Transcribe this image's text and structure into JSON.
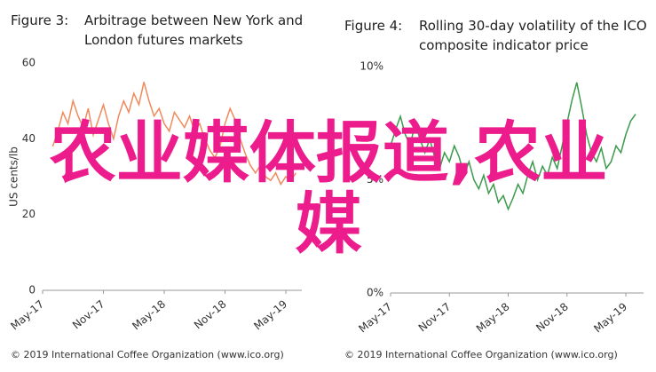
{
  "chart_data": [
    {
      "type": "line",
      "figure_label": "Figure 3:",
      "title": "Arbitrage between New York and London futures markets",
      "ylabel": "US cents/lb",
      "ylim": [
        0,
        60
      ],
      "yticks": [
        0,
        20,
        40,
        60
      ],
      "categories": [
        "May-17",
        null,
        null,
        null,
        null,
        null,
        null,
        null,
        null,
        null,
        null,
        null,
        "Nov-17",
        null,
        null,
        null,
        null,
        null,
        null,
        null,
        null,
        null,
        null,
        null,
        "May-18",
        null,
        null,
        null,
        null,
        null,
        null,
        null,
        null,
        null,
        null,
        null,
        "Nov-18",
        null,
        null,
        null,
        null,
        null,
        null,
        null,
        null,
        null,
        null,
        null,
        "May-19",
        null,
        null
      ],
      "series": [
        {
          "color": "#f08a5d",
          "values": [
            null,
            null,
            38,
            42,
            47,
            44,
            50,
            46,
            43,
            48,
            41,
            45,
            49,
            44,
            40,
            46,
            50,
            47,
            52,
            49,
            55,
            50,
            46,
            48,
            44,
            42,
            47,
            45,
            43,
            46,
            42,
            44,
            40,
            37,
            35,
            38,
            44,
            48,
            45,
            40,
            36,
            33,
            31,
            33,
            30,
            29,
            31,
            28,
            30,
            29,
            31
          ]
        }
      ],
      "source": "© 2019 International Coffee Organization (www.ico.org)"
    },
    {
      "type": "line",
      "figure_label": "Figure 4:",
      "title": "Rolling 30-day volatility of the ICO composite indicator price",
      "ylim": [
        0,
        10
      ],
      "yticks": [
        {
          "value": 0,
          "label": "0%"
        },
        {
          "value": 5,
          "label": "5%"
        },
        {
          "value": 10,
          "label": "10%"
        }
      ],
      "categories": [
        "May-17",
        null,
        null,
        null,
        null,
        null,
        null,
        null,
        null,
        null,
        null,
        null,
        "Nov-17",
        null,
        null,
        null,
        null,
        null,
        null,
        null,
        null,
        null,
        null,
        null,
        "May-18",
        null,
        null,
        null,
        null,
        null,
        null,
        null,
        null,
        null,
        null,
        null,
        "Nov-18",
        null,
        null,
        null,
        null,
        null,
        null,
        null,
        null,
        null,
        null,
        null,
        "May-19",
        null,
        null
      ],
      "series": [
        {
          "color": "#3a9a4a",
          "values": [
            6.5,
            7.2,
            7.8,
            7.0,
            6.5,
            7.5,
            6.8,
            6.2,
            6.8,
            6.0,
            5.5,
            6.2,
            5.8,
            6.5,
            6.0,
            5.2,
            5.8,
            5.0,
            4.6,
            5.2,
            4.4,
            4.8,
            4.0,
            4.3,
            3.7,
            4.2,
            4.8,
            4.4,
            5.2,
            5.8,
            5.0,
            5.6,
            5.2,
            6.0,
            5.5,
            6.5,
            7.5,
            8.5,
            9.3,
            8.2,
            7.0,
            6.2,
            5.8,
            6.4,
            5.5,
            5.8,
            6.5,
            6.2,
            7.0,
            7.6,
            7.9
          ]
        }
      ],
      "source": "© 2019 International Coffee Organization (www.ico.org)"
    }
  ],
  "overlay_text": "农业媒体报道,农业媒"
}
